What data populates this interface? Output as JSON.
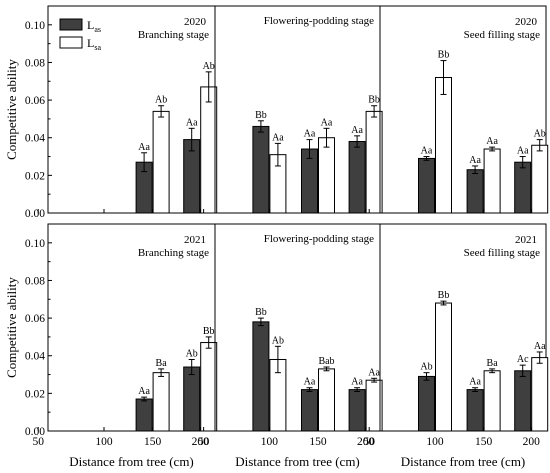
{
  "colors": {
    "las": "#3f3f3f",
    "lsa": "#ffffff",
    "edge": "#000000"
  },
  "legend": [
    {
      "series": "las",
      "main": "L",
      "sub": "as"
    },
    {
      "series": "lsa",
      "main": "L",
      "sub": "sa"
    }
  ],
  "y_tick_labels": [
    "0.00",
    "0.02",
    "0.04",
    "0.06",
    "0.08",
    "0.10"
  ],
  "x_tick_labels": [
    "50",
    "100",
    "150",
    "200"
  ],
  "chart_data": [
    {
      "type": "bar",
      "year": "2020",
      "stage": "Branching stage",
      "ylabel": "Competitive ability",
      "xlabel": "",
      "ylim": [
        0,
        0.11
      ],
      "categories": [
        50,
        100,
        150,
        200
      ],
      "series": [
        {
          "name": "Las",
          "values": [
            null,
            null,
            0.027,
            0.039
          ],
          "errors": [
            null,
            null,
            0.005,
            0.006
          ],
          "labels": [
            "",
            "",
            "Aa",
            "Aa"
          ]
        },
        {
          "name": "Lsa",
          "values": [
            null,
            null,
            0.054,
            0.067
          ],
          "errors": [
            null,
            null,
            0.003,
            0.008
          ],
          "labels": [
            "",
            "",
            "Ab",
            "Ab"
          ]
        }
      ]
    },
    {
      "type": "bar",
      "year": "",
      "stage": "Flowering-podding stage",
      "ylabel": "",
      "xlabel": "",
      "ylim": [
        0,
        0.11
      ],
      "categories": [
        50,
        100,
        150,
        200
      ],
      "series": [
        {
          "name": "Las",
          "values": [
            null,
            0.046,
            0.034,
            0.038
          ],
          "errors": [
            null,
            0.003,
            0.005,
            0.003
          ],
          "labels": [
            "",
            "Bb",
            "Aa",
            "Aa"
          ]
        },
        {
          "name": "Lsa",
          "values": [
            null,
            0.031,
            0.04,
            0.054
          ],
          "errors": [
            null,
            0.006,
            0.005,
            0.003
          ],
          "labels": [
            "",
            "Aa",
            "Aa",
            "Bb"
          ]
        }
      ]
    },
    {
      "type": "bar",
      "year": "2020",
      "stage": "Seed filling stage",
      "ylabel": "",
      "xlabel": "",
      "ylim": [
        0,
        0.11
      ],
      "categories": [
        50,
        100,
        150,
        200
      ],
      "series": [
        {
          "name": "Las",
          "values": [
            null,
            0.029,
            0.023,
            0.027
          ],
          "errors": [
            null,
            0.001,
            0.002,
            0.003
          ],
          "labels": [
            "",
            "Aa",
            "Aa",
            "Aa"
          ]
        },
        {
          "name": "Lsa",
          "values": [
            null,
            0.072,
            0.034,
            0.036
          ],
          "errors": [
            null,
            0.009,
            0.001,
            0.003
          ],
          "labels": [
            "",
            "Bb",
            "Aa",
            "Ab"
          ]
        }
      ]
    },
    {
      "type": "bar",
      "year": "2021",
      "stage": "Branching stage",
      "ylabel": "Competitive ability",
      "xlabel": "Distance from tree (cm)",
      "ylim": [
        0,
        0.11
      ],
      "categories": [
        50,
        100,
        150,
        200
      ],
      "series": [
        {
          "name": "Las",
          "values": [
            null,
            null,
            0.017,
            0.034
          ],
          "errors": [
            null,
            null,
            0.001,
            0.004
          ],
          "labels": [
            "",
            "",
            "Aa",
            "Ab"
          ]
        },
        {
          "name": "Lsa",
          "values": [
            null,
            null,
            0.031,
            0.047
          ],
          "errors": [
            null,
            null,
            0.002,
            0.003
          ],
          "labels": [
            "",
            "",
            "Ba",
            "Bb"
          ]
        }
      ]
    },
    {
      "type": "bar",
      "year": "",
      "stage": "Flowering-podding stage",
      "ylabel": "",
      "xlabel": "Distance from tree (cm)",
      "ylim": [
        0,
        0.11
      ],
      "categories": [
        50,
        100,
        150,
        200
      ],
      "series": [
        {
          "name": "Las",
          "values": [
            null,
            0.058,
            0.022,
            0.022
          ],
          "errors": [
            null,
            0.002,
            0.001,
            0.001
          ],
          "labels": [
            "",
            "Bb",
            "Aa",
            "Aa"
          ]
        },
        {
          "name": "Lsa",
          "values": [
            null,
            0.038,
            0.033,
            0.027
          ],
          "errors": [
            null,
            0.007,
            0.001,
            0.001
          ],
          "labels": [
            "",
            "Ab",
            "Bab",
            "Aa"
          ]
        }
      ]
    },
    {
      "type": "bar",
      "year": "2021",
      "stage": "Seed filling stage",
      "ylabel": "",
      "xlabel": "Distance from tree (cm)",
      "ylim": [
        0,
        0.11
      ],
      "categories": [
        50,
        100,
        150,
        200
      ],
      "series": [
        {
          "name": "Las",
          "values": [
            null,
            0.029,
            0.022,
            0.032
          ],
          "errors": [
            null,
            0.002,
            0.001,
            0.003
          ],
          "labels": [
            "",
            "Ab",
            "Aa",
            "Ac"
          ]
        },
        {
          "name": "Lsa",
          "values": [
            null,
            0.068,
            0.032,
            0.039
          ],
          "errors": [
            null,
            0.001,
            0.001,
            0.003
          ],
          "labels": [
            "",
            "Bb",
            "Ba",
            "Aa"
          ]
        }
      ]
    }
  ]
}
